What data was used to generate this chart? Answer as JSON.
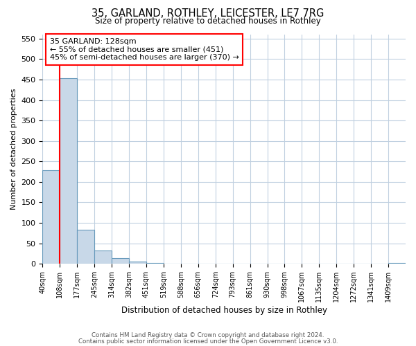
{
  "title_line1": "35, GARLAND, ROTHLEY, LEICESTER, LE7 7RG",
  "title_line2": "Size of property relative to detached houses in Rothley",
  "xlabel": "Distribution of detached houses by size in Rothley",
  "ylabel": "Number of detached properties",
  "bin_labels": [
    "40sqm",
    "108sqm",
    "177sqm",
    "245sqm",
    "314sqm",
    "382sqm",
    "451sqm",
    "519sqm",
    "588sqm",
    "656sqm",
    "724sqm",
    "793sqm",
    "861sqm",
    "930sqm",
    "998sqm",
    "1067sqm",
    "1135sqm",
    "1204sqm",
    "1272sqm",
    "1341sqm",
    "1409sqm"
  ],
  "bar_heights": [
    228,
    453,
    83,
    32,
    13,
    6,
    2,
    0,
    0,
    0,
    1,
    0,
    0,
    0,
    0,
    0,
    0,
    0,
    0,
    0,
    2
  ],
  "bar_color": "#c8d8e8",
  "bar_edge_color": "#6699bb",
  "ylim": [
    0,
    560
  ],
  "yticks": [
    0,
    50,
    100,
    150,
    200,
    250,
    300,
    350,
    400,
    450,
    500,
    550
  ],
  "annotation_title": "35 GARLAND: 128sqm",
  "annotation_line1": "← 55% of detached houses are smaller (451)",
  "annotation_line2": "45% of semi-detached houses are larger (370) →",
  "footer_line1": "Contains HM Land Registry data © Crown copyright and database right 2024.",
  "footer_line2": "Contains public sector information licensed under the Open Government Licence v3.0.",
  "background_color": "#ffffff",
  "grid_color": "#c0d0e0",
  "red_line_x": 1.0
}
